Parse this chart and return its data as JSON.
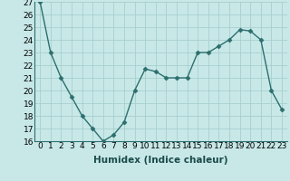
{
  "x": [
    0,
    1,
    2,
    3,
    4,
    5,
    6,
    7,
    8,
    9,
    10,
    11,
    12,
    13,
    14,
    15,
    16,
    17,
    18,
    19,
    20,
    21,
    22,
    23
  ],
  "y": [
    27,
    23,
    21,
    19.5,
    18,
    17,
    16,
    16.5,
    17.5,
    20,
    21.7,
    21.5,
    21,
    21,
    21,
    23,
    23,
    23.5,
    24,
    24.8,
    24.7,
    24,
    20,
    18.5
  ],
  "xlabel": "Humidex (Indice chaleur)",
  "ylim_min": 16,
  "ylim_max": 27,
  "xlim_min": -0.5,
  "xlim_max": 23.5,
  "yticks": [
    16,
    17,
    18,
    19,
    20,
    21,
    22,
    23,
    24,
    25,
    26,
    27
  ],
  "xtick_labels": [
    "0",
    "1",
    "2",
    "3",
    "4",
    "5",
    "6",
    "7",
    "8",
    "9",
    "10",
    "11",
    "12",
    "13",
    "14",
    "15",
    "16",
    "17",
    "18",
    "19",
    "20",
    "21",
    "22",
    "23"
  ],
  "line_color": "#2d6e6e",
  "marker": "D",
  "marker_size": 2.5,
  "bg_color": "#c8e8e8",
  "grid_color": "#a8cece",
  "xlabel_fontsize": 7.5,
  "tick_fontsize": 6.5,
  "linewidth": 1.0
}
